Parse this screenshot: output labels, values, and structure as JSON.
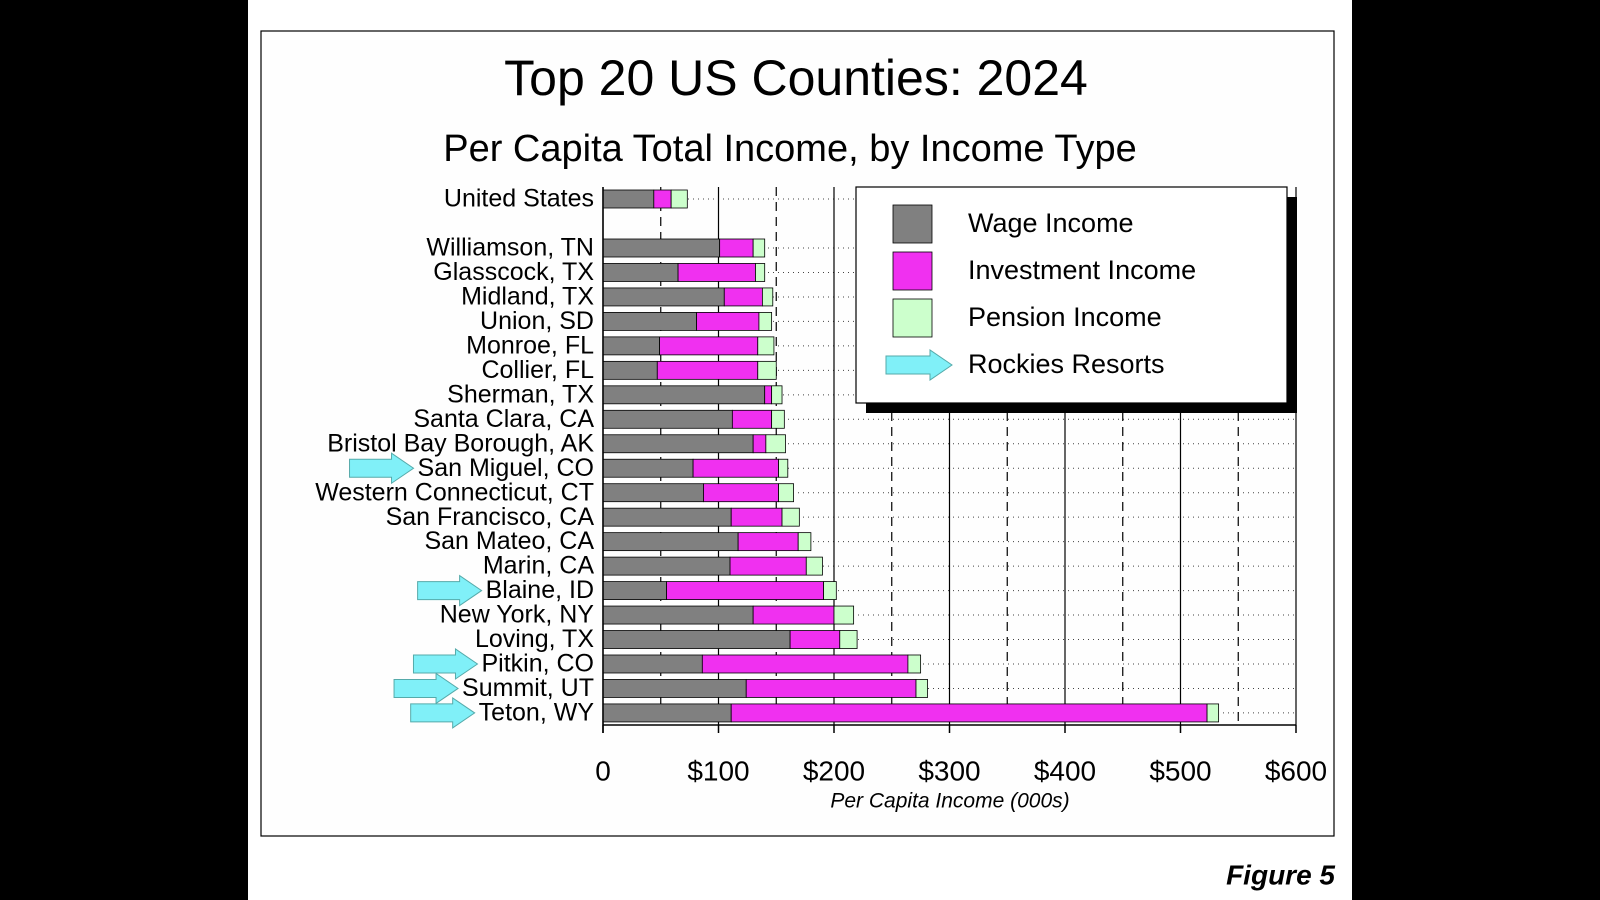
{
  "chart_data": {
    "type": "stacked-barh",
    "title": "Top 20 US Counties: 2024",
    "subtitle": "Per Capita Total Income, by Income Type",
    "x_label": "Per Capita Income (000s)",
    "figure_label": "Figure 5",
    "categories": [
      "United States",
      "Williamson, TN",
      "Glasscock, TX",
      "Midland, TX",
      "Union, SD",
      "Monroe, FL",
      "Collier, FL",
      "Sherman, TX",
      "Santa Clara, CA",
      "Bristol Bay Borough, AK",
      "San Miguel, CO",
      "Western Connecticut, CT",
      "San Francisco, CA",
      "San Mateo, CA",
      "Marin, CA",
      "Blaine, ID",
      "New York, NY",
      "Loving, TX",
      "Pitkin, CO",
      "Summit, UT",
      "Teton, WY"
    ],
    "series": [
      {
        "name": "Wage Income",
        "color": "#808080",
        "values": [
          44,
          101,
          65,
          105,
          81,
          49,
          47,
          140,
          112,
          130,
          78,
          87,
          111,
          117,
          110,
          55,
          130,
          162,
          86,
          124,
          111
        ]
      },
      {
        "name": "Investment Income",
        "color": "#f030f0",
        "values": [
          15,
          29,
          67,
          33,
          54,
          85,
          87,
          6,
          34,
          11,
          74,
          65,
          44,
          52,
          66,
          136,
          70,
          43,
          178,
          147,
          412
        ]
      },
      {
        "name": "Pension Income",
        "color": "#ccffcc",
        "values": [
          14,
          10,
          8,
          9,
          11,
          14,
          16,
          9,
          11,
          17,
          8,
          13,
          15,
          11,
          14,
          11,
          17,
          15,
          11,
          10,
          10
        ]
      }
    ],
    "highlight": {
      "name": "Rockies Resorts",
      "color": "#80f0f8",
      "flags": [
        false,
        false,
        false,
        false,
        false,
        false,
        false,
        false,
        false,
        false,
        true,
        false,
        false,
        false,
        false,
        true,
        false,
        false,
        true,
        true,
        true
      ]
    },
    "xlim": [
      0,
      600
    ],
    "xticks": [
      0,
      {
        "value": 100,
        "label": "$100"
      },
      {
        "value": 200,
        "label": "$200"
      },
      {
        "value": 300,
        "label": "$300"
      },
      {
        "value": 400,
        "label": "$400"
      },
      {
        "value": 500,
        "label": "$500"
      },
      {
        "value": 600,
        "label": "$600"
      }
    ],
    "minor_xticks": [
      50,
      150,
      250,
      350,
      450,
      550
    ],
    "grid": true,
    "legend": "upper right"
  }
}
